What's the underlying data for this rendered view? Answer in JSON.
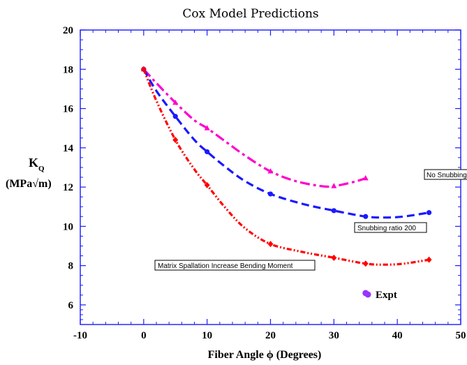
{
  "chart_data": {
    "type": "line",
    "title": "Cox Model Predictions",
    "xlabel": "Fiber Angle ϕ (Degrees)",
    "ylabel_line1": "K",
    "ylabel_sub": "Q",
    "ylabel_line2": "(MPa√m)",
    "xlim": [
      -10,
      50
    ],
    "ylim": [
      5,
      20
    ],
    "xticks": [
      -10,
      0,
      10,
      20,
      30,
      40,
      50
    ],
    "yticks": [
      6,
      8,
      10,
      12,
      14,
      16,
      18,
      20
    ],
    "grid": false,
    "series": [
      {
        "name": "No Snubbing",
        "color": "#ff00cc",
        "marker": "triangle",
        "dash": "dashdot",
        "x": [
          0,
          5,
          10,
          20,
          30,
          35
        ],
        "y": [
          18.0,
          16.3,
          15.0,
          12.8,
          12.05,
          12.45
        ],
        "curve": [
          [
            0,
            18.0
          ],
          [
            2,
            17.3
          ],
          [
            5,
            16.3
          ],
          [
            8,
            15.4
          ],
          [
            10,
            15.0
          ],
          [
            13,
            14.3
          ],
          [
            16,
            13.6
          ],
          [
            20,
            12.8
          ],
          [
            24,
            12.3
          ],
          [
            28,
            12.05
          ],
          [
            30,
            12.05
          ],
          [
            33,
            12.25
          ],
          [
            35,
            12.45
          ]
        ]
      },
      {
        "name": "Snubbing ratio 200",
        "color": "#1a1aff",
        "marker": "circle",
        "dash": "dashed",
        "x": [
          0,
          5,
          10,
          20,
          30,
          35,
          45
        ],
        "y": [
          18.0,
          15.6,
          13.8,
          11.65,
          10.8,
          10.5,
          10.7
        ],
        "curve": [
          [
            0,
            18.0
          ],
          [
            2,
            16.9
          ],
          [
            5,
            15.6
          ],
          [
            8,
            14.4
          ],
          [
            10,
            13.8
          ],
          [
            13,
            13.0
          ],
          [
            16,
            12.3
          ],
          [
            20,
            11.65
          ],
          [
            25,
            11.15
          ],
          [
            30,
            10.8
          ],
          [
            35,
            10.5
          ],
          [
            38,
            10.45
          ],
          [
            41,
            10.5
          ],
          [
            45,
            10.7
          ]
        ]
      },
      {
        "name": "Matrix Spallation Increase Bending Moment",
        "color": "#ff0000",
        "marker": "diamond",
        "dash": "dashdotdot",
        "x": [
          0,
          5,
          10,
          20,
          30,
          35,
          45
        ],
        "y": [
          18.0,
          14.4,
          12.1,
          9.1,
          8.4,
          8.1,
          8.3
        ],
        "curve": [
          [
            0,
            18.0
          ],
          [
            2,
            16.4
          ],
          [
            5,
            14.4
          ],
          [
            8,
            12.9
          ],
          [
            10,
            12.1
          ],
          [
            13,
            10.9
          ],
          [
            16,
            9.9
          ],
          [
            20,
            9.1
          ],
          [
            25,
            8.7
          ],
          [
            30,
            8.4
          ],
          [
            35,
            8.1
          ],
          [
            38,
            8.05
          ],
          [
            41,
            8.1
          ],
          [
            45,
            8.3
          ]
        ]
      },
      {
        "name": "Expt",
        "color": "#9933ff",
        "marker": "circle",
        "x": [
          35
        ],
        "y": [
          6.6
        ]
      }
    ],
    "annotations": [
      "No Snubbing",
      "Snubbing ratio 200",
      "Matrix Spallation Increase Bending Moment"
    ],
    "legend": {
      "placement": "bottom-right",
      "entries": [
        "Expt"
      ]
    }
  }
}
